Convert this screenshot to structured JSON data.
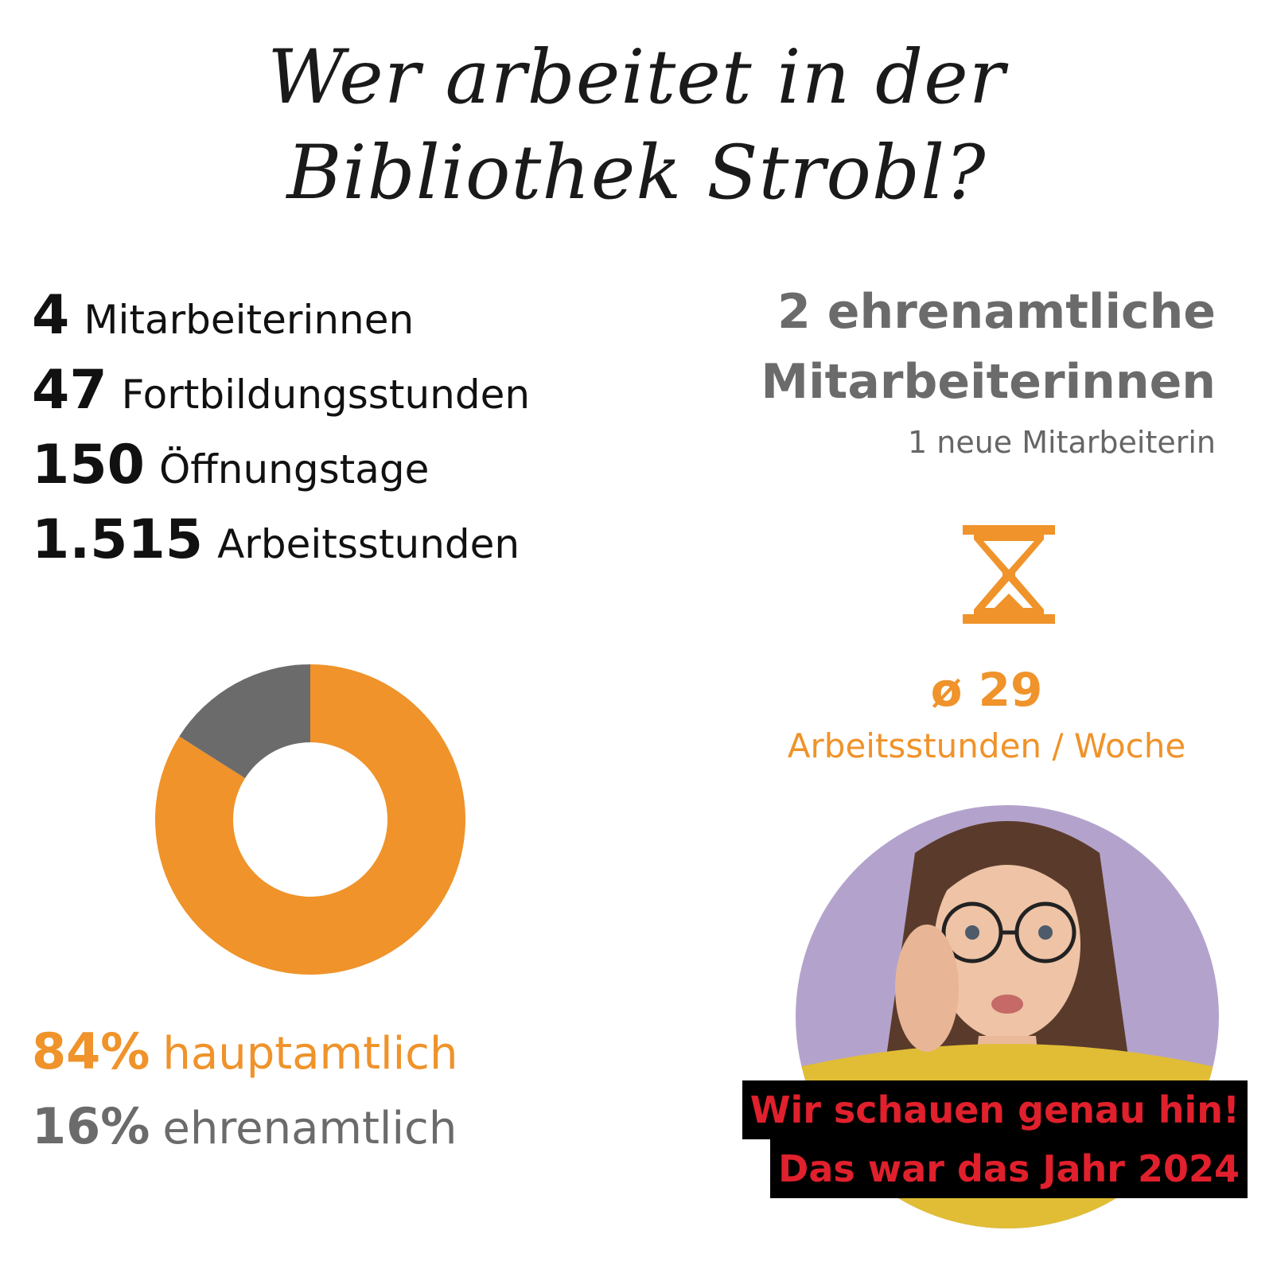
{
  "title": {
    "line1": "Wer arbeitet in der",
    "line2": "Bibliothek Strobl?"
  },
  "stats": [
    {
      "number": "4",
      "label": "Mitarbeiterinnen"
    },
    {
      "number": "47",
      "label": "Fortbildungsstunden"
    },
    {
      "number": "150",
      "label": "Öffnungstage"
    },
    {
      "number": "1.515",
      "label": "Arbeitsstunden"
    }
  ],
  "volunteer": {
    "line1": "2 ehrenamtliche",
    "line2": "Mitarbeiterinnen",
    "sub": "1 neue Mitarbeiterin"
  },
  "average": {
    "value": "ø 29",
    "label": "Arbeitsstunden / Woche"
  },
  "banner": {
    "line1": "Wir schauen genau hin!",
    "line2": "Das war das Jahr 2024"
  },
  "colors": {
    "accent": "#ef932a",
    "secondary": "#6b6b6b",
    "banner_text": "#e0202c",
    "banner_bg": "#000000"
  },
  "icons": {
    "hourglass": "hourglass-icon"
  },
  "chart_data": {
    "type": "pie",
    "donut": true,
    "labels": [
      "hauptamtlich",
      "ehrenamtlich"
    ],
    "values": [
      84,
      16
    ],
    "value_labels": [
      "84%",
      "16%"
    ],
    "colors": [
      "#ef932a",
      "#6b6b6b"
    ]
  }
}
